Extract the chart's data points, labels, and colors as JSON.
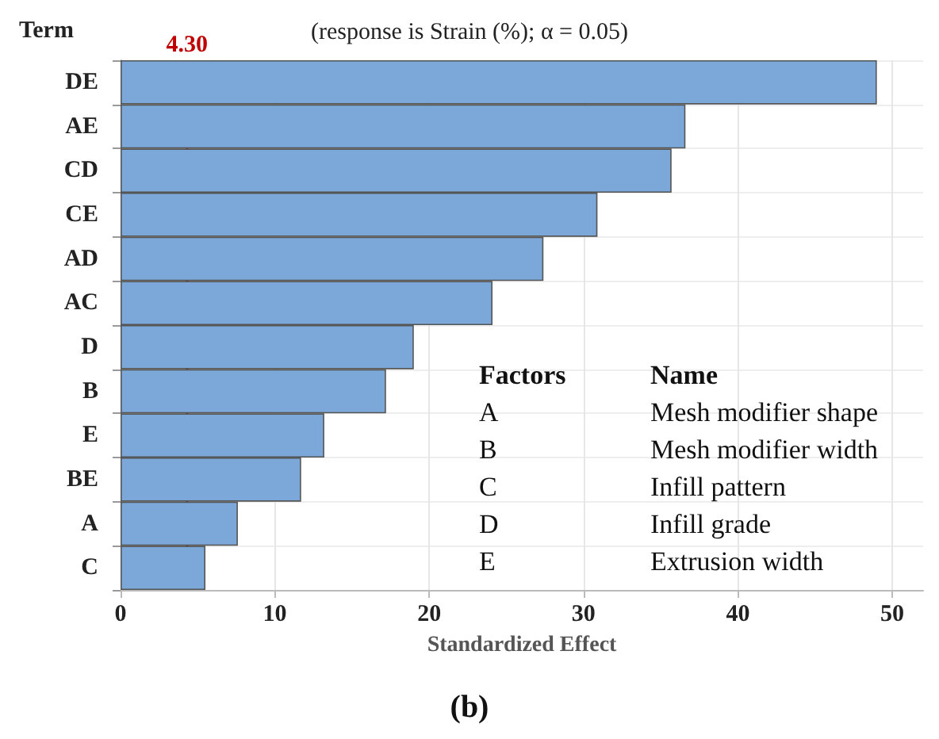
{
  "chart_data": {
    "type": "bar",
    "orientation": "horizontal",
    "title": "(response is Strain (%); α = 0.05)",
    "ylabel": "Term",
    "xlabel": "Standardized Effect",
    "categories": [
      "DE",
      "AE",
      "CD",
      "CE",
      "AD",
      "AC",
      "D",
      "B",
      "E",
      "BE",
      "A",
      "C"
    ],
    "values": [
      49.0,
      36.6,
      35.7,
      30.9,
      27.4,
      24.1,
      19.0,
      17.2,
      13.2,
      11.7,
      7.6,
      5.5
    ],
    "color": "#7ba7d9",
    "xlim": [
      0,
      52
    ],
    "xticks": [
      0,
      10,
      20,
      30,
      40,
      50
    ],
    "grid": true,
    "ref_lines": [
      {
        "axis": "x",
        "value": 4.3,
        "label": "4.30",
        "color": "#c00000",
        "line_style": "dashed"
      }
    ],
    "annotations": [
      "Factors",
      "Name",
      "A",
      "Mesh modifier shape",
      "B",
      "Mesh modifier width",
      "C",
      "Infill pattern",
      "D",
      "Infill grade",
      "E",
      "Extrusion width",
      "(b)"
    ]
  }
}
